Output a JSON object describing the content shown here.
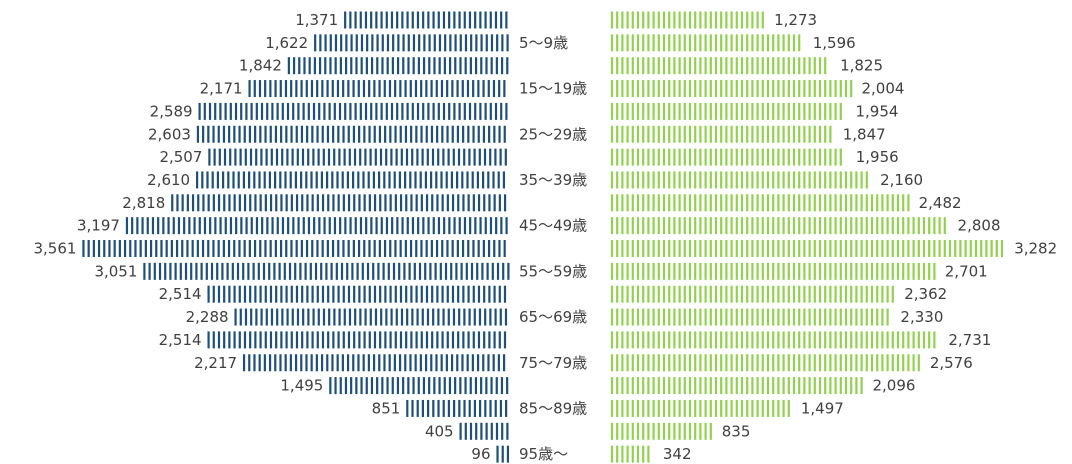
{
  "chart_data": {
    "type": "bar",
    "orientation": "horizontal-population-pyramid",
    "age_labels": [
      "",
      "5～9歳",
      "",
      "15～19歳",
      "",
      "25～29歳",
      "",
      "35～39歳",
      "",
      "45～49歳",
      "",
      "55～59歳",
      "",
      "65～69歳",
      "",
      "75～79歳",
      "",
      "85～89歳",
      "",
      "95歳～"
    ],
    "series": [
      {
        "side": "left",
        "color": "#1f4e79",
        "values": [
          1371,
          1622,
          1842,
          2171,
          2589,
          2603,
          2507,
          2610,
          2818,
          3197,
          3561,
          3051,
          2514,
          2288,
          2514,
          2217,
          1495,
          851,
          405,
          96
        ],
        "labels": [
          "1,371",
          "1,622",
          "1,842",
          "2,171",
          "2,589",
          "2,603",
          "2,507",
          "2,610",
          "2,818",
          "3,197",
          "3,561",
          "3,051",
          "2,514",
          "2,288",
          "2,514",
          "2,217",
          "1,495",
          "851",
          "405",
          "96"
        ]
      },
      {
        "side": "right",
        "color": "#92d050",
        "values": [
          1273,
          1596,
          1825,
          2004,
          1954,
          1847,
          1956,
          2160,
          2482,
          2808,
          3282,
          2701,
          2362,
          2330,
          2731,
          2576,
          2096,
          1497,
          835,
          342
        ],
        "labels": [
          "1,273",
          "1,596",
          "1,825",
          "2,004",
          "1,954",
          "1,847",
          "1,956",
          "2,160",
          "2,482",
          "2,808",
          "3,282",
          "2,701",
          "2,362",
          "2,330",
          "2,731",
          "2,576",
          "2,096",
          "1,497",
          "835",
          "342"
        ]
      }
    ],
    "grid": false,
    "legend": "none"
  }
}
